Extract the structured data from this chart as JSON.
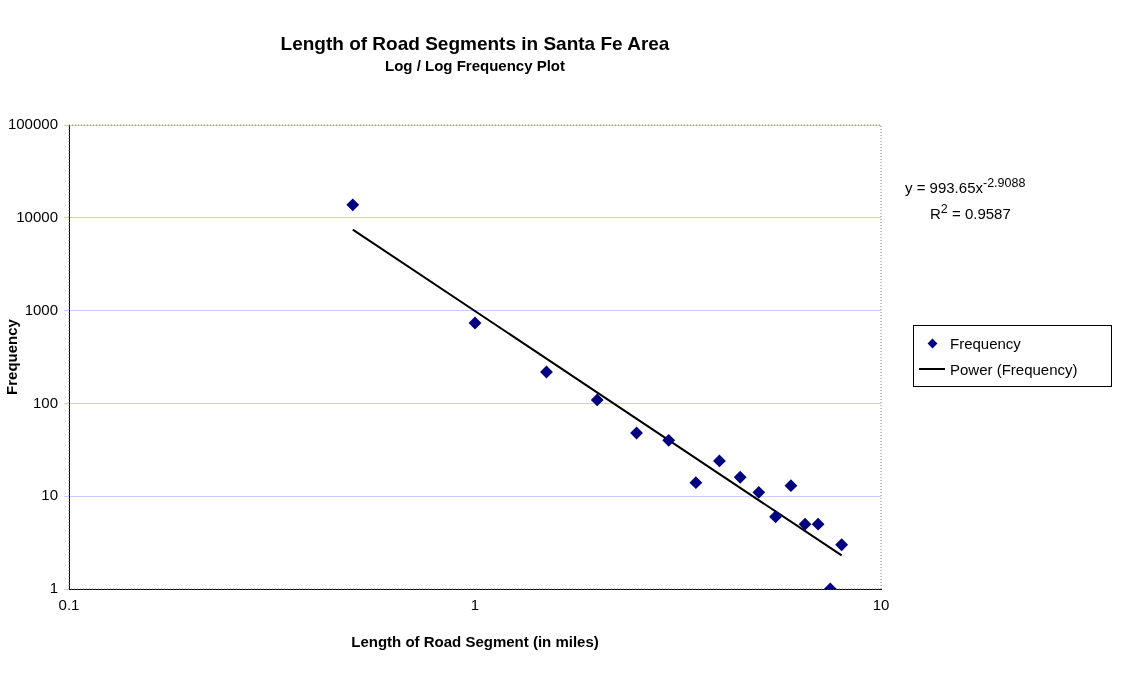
{
  "chart_data": {
    "type": "scatter",
    "title": "Length of Road Segments in Santa Fe Area",
    "subtitle": "Log / Log Frequency Plot",
    "xlabel": "Length of Road Segment (in miles)",
    "ylabel": "Frequency",
    "x": [
      0.5,
      1,
      1.5,
      2,
      2.5,
      3,
      3.5,
      4,
      4.5,
      5,
      5.5,
      6,
      6.5,
      7,
      7.5,
      8
    ],
    "series": [
      {
        "name": "Frequency",
        "color": "#000080",
        "marker": "diamond",
        "values": [
          13800,
          735,
          218,
          109,
          48,
          40,
          14,
          24,
          16,
          11,
          6,
          13,
          5,
          5,
          1,
          3
        ]
      },
      {
        "name": "Power (Frequency)",
        "color": "#000000",
        "type": "line",
        "marker": "none",
        "line_style": "solid",
        "x": [
          0.5,
          8
        ],
        "values": [
          7460,
          2.3
        ]
      }
    ],
    "annotations": [
      "y = 993.65x$^{-2.9088}$",
      "R$^{2}$ = 0.9587"
    ],
    "log": "xy",
    "xlim": [
      0.1,
      10
    ],
    "xticks": [
      0.1,
      1,
      10
    ],
    "ylim": [
      1,
      100000
    ],
    "yticks": [
      1,
      10,
      100,
      1000,
      10000,
      100000
    ],
    "grid": "y",
    "legend": "right"
  }
}
